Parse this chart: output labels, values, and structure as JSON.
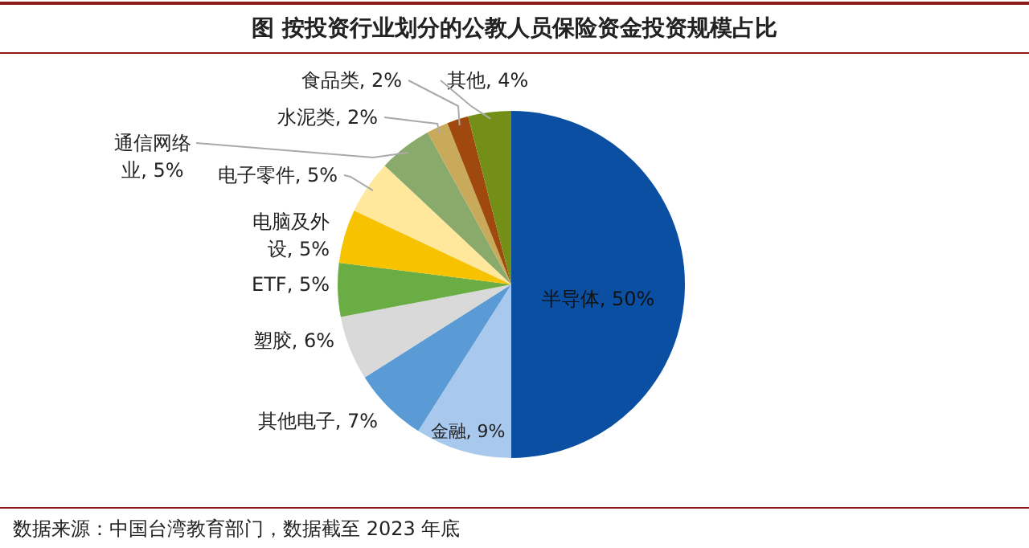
{
  "chart_data": {
    "type": "pie",
    "title": "图  按投资行业划分的公教人员保险资金投资规模占比",
    "categories": [
      "半导体",
      "金融",
      "其他电子",
      "塑胶",
      "ETF",
      "电脑及外设",
      "电子零件",
      "通信网络业",
      "水泥类",
      "食品类",
      "其他"
    ],
    "values": [
      50,
      9,
      7,
      6,
      5,
      5,
      5,
      5,
      2,
      2,
      4
    ],
    "value_labels": [
      "50%",
      "9%",
      "7%",
      "6%",
      "5%",
      "5%",
      "5%",
      "5%",
      "2%",
      "2%",
      "4%"
    ],
    "colors": [
      "#0b4fa3",
      "#a9c8ee",
      "#5b9bd5",
      "#d9d9d9",
      "#6aad45",
      "#f7c300",
      "#ffe79c",
      "#8aaa6c",
      "#c9a95a",
      "#a0490f",
      "#738f17"
    ],
    "annotations": [
      "数据来源：中国台湾教育部门，数据截至 2023 年底"
    ]
  }
}
